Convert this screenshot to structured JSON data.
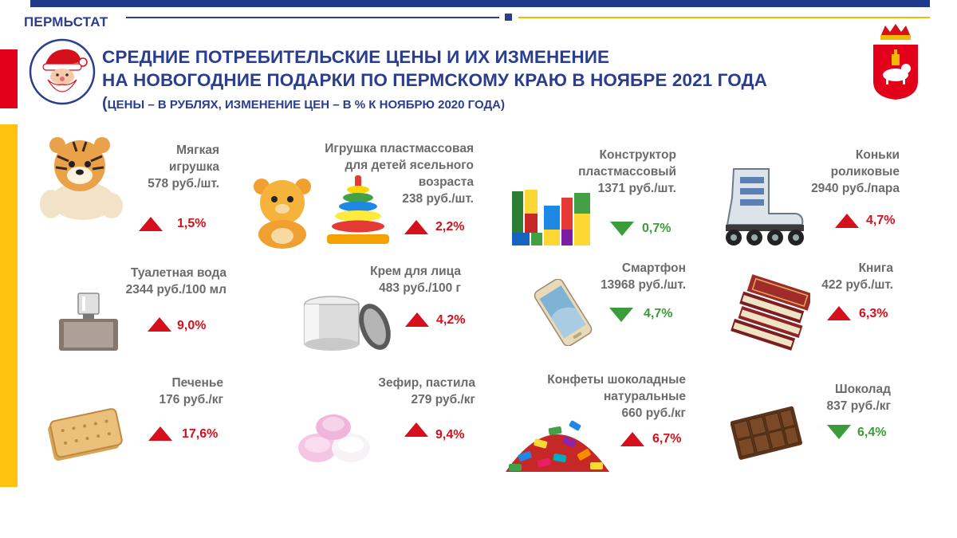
{
  "header": {
    "brand": "ПЕРМЬСТАТ",
    "title_line1": "СРЕДНИЕ ПОТРЕБИТЕЛЬСКИЕ ЦЕНЫ И ИХ ИЗМЕНЕНИЕ",
    "title_line2": "НА НОВОГОДНИЕ ПОДАРКИ ПО ПЕРМСКОМУ КРАЮ В НОЯБРЕ 2021 ГОДА",
    "subtitle_open": "(",
    "subtitle_text": "ЦЕНЫ – В РУБЛЯХ, ИЗМЕНЕНИЕ  ЦЕН – В % К НОЯБРЮ 2020 ГОДА)"
  },
  "colors": {
    "brand_blue": "#2a3d8f",
    "increase": "#d50f1b",
    "decrease": "#3a9c3a",
    "accent_red": "#e2001a",
    "accent_gold": "#ffc20e"
  },
  "items": [
    {
      "name_line1": "Мягкая",
      "name_line2": "игрушка",
      "price": "578 руб./шт.",
      "change": "1,5%",
      "direction": "up",
      "icon": "plush-tiger-icon"
    },
    {
      "name_line1": "Игрушка пластмассовая",
      "name_line2": "для детей ясельного",
      "name_line3": "возраста",
      "price": "238 руб./шт.",
      "change": "2,2%",
      "direction": "up",
      "icon": "toy-bear-pyramid-icon"
    },
    {
      "name_line1": "Конструктор",
      "name_line2": "пластмассовый",
      "price": "1371 руб./шт.",
      "change": "0,7%",
      "direction": "down",
      "icon": "building-blocks-icon"
    },
    {
      "name_line1": "Коньки",
      "name_line2": "роликовые",
      "price": "2940 руб./пара",
      "change": "4,7%",
      "direction": "up",
      "icon": "roller-skate-icon"
    },
    {
      "name_line1": "Туалетная вода",
      "price": "2344 руб./100 мл",
      "change": "9,0%",
      "direction": "up",
      "icon": "perfume-bottle-icon"
    },
    {
      "name_line1": "Крем для лица",
      "price": "483 руб./100 г",
      "change": "4,2%",
      "direction": "up",
      "icon": "cream-jar-icon"
    },
    {
      "name_line1": "Смартфон",
      "price": "13968 руб./шт.",
      "change": "4,7%",
      "direction": "down",
      "icon": "smartphone-icon"
    },
    {
      "name_line1": "Книга",
      "price": "422 руб./шт.",
      "change": "6,3%",
      "direction": "up",
      "icon": "books-icon"
    },
    {
      "name_line1": "Печенье",
      "price": "176 руб./кг",
      "change": "17,6%",
      "direction": "up",
      "icon": "biscuits-icon"
    },
    {
      "name_line1": "Зефир, пастила",
      "price": "279 руб./кг",
      "change": "9,4%",
      "direction": "up",
      "icon": "marshmallow-icon"
    },
    {
      "name_line1": "Конфеты шоколадные",
      "name_line2": "натуральные",
      "price": "660 руб./кг",
      "change": "6,7%",
      "direction": "up",
      "icon": "candies-icon"
    },
    {
      "name_line1": "Шоколад",
      "price": "837 руб./кг",
      "change": "6,4%",
      "direction": "down",
      "icon": "chocolate-bar-icon"
    }
  ]
}
